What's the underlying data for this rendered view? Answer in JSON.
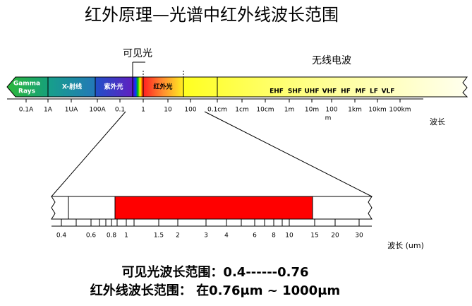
{
  "header": {
    "title": "红外原理—光谱中红外线波长范围"
  },
  "spectrum": {
    "visible_label": "可见光",
    "radio_label": "无线电波",
    "bands": [
      "Gamma",
      "Rays",
      "X-射线",
      "紫外光",
      "红外光"
    ],
    "radio_bands": [
      "EHF",
      "SHF",
      "UHF",
      "VHF",
      "HF",
      "MF",
      "LF",
      "VLF"
    ],
    "scale": [
      "0.1A",
      "1A",
      "1UA",
      "100A",
      "0.1",
      "1",
      "10",
      "100",
      "0.1cm",
      "1cm",
      "10cm",
      "1m",
      "10m",
      "100",
      "m",
      "1km",
      "10km",
      "100km"
    ],
    "axis_label": "波长"
  },
  "zoom": {
    "scale": [
      "0.4",
      "0.6",
      "0.8",
      "1",
      "1.5",
      "2",
      "3",
      "4",
      "6",
      "8",
      "10",
      "15",
      "20",
      "30"
    ],
    "axis_label": "波长 (um)"
  },
  "notes": [
    "可见光波长范围：0.4------0.76",
    "红外线波长范围： 在0.76μm ~ 1000μm"
  ]
}
